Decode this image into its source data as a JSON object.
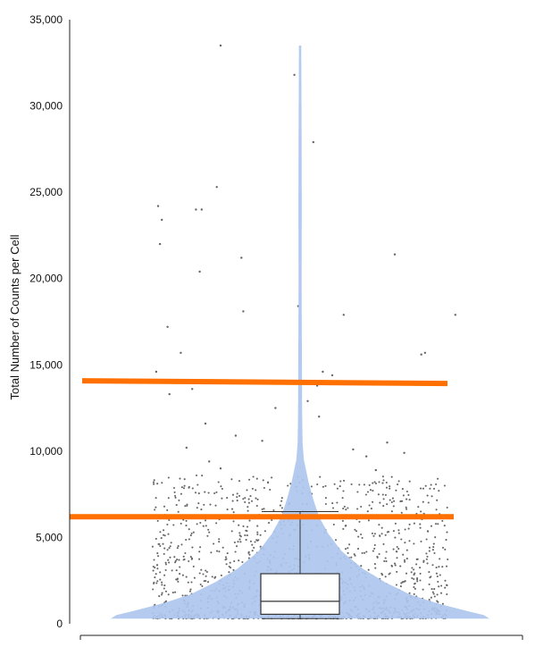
{
  "chart_data": {
    "type": "violin",
    "title": "",
    "xlabel": "",
    "ylabel": "Total Number of Counts per Cell",
    "ylim": [
      0,
      35000
    ],
    "yticks": [
      0,
      5000,
      10000,
      15000,
      20000,
      25000,
      30000,
      35000
    ],
    "ytick_labels": [
      "0",
      "5,000",
      "10,000",
      "15,000",
      "20,000",
      "25,000",
      "30,000",
      "35,000"
    ],
    "grid": false,
    "legend": "none",
    "box": {
      "min": 300,
      "q1": 550,
      "median": 1300,
      "q3": 2900,
      "whisker_high": 6500
    },
    "violin_profile": {
      "y": [
        300,
        500,
        800,
        1200,
        1700,
        2400,
        3200,
        4200,
        5200,
        6200,
        7200,
        8200,
        9500,
        10500,
        12000,
        14000,
        17000,
        20000,
        24000,
        28000,
        31000,
        33500
      ],
      "relative_halfwidth": [
        1.0,
        0.97,
        0.86,
        0.72,
        0.58,
        0.45,
        0.33,
        0.22,
        0.15,
        0.1,
        0.07,
        0.045,
        0.02,
        0.013,
        0.011,
        0.01,
        0.009,
        0.008,
        0.009,
        0.008,
        0.007,
        0.006
      ]
    },
    "threshold_lines": [
      {
        "y": 14000,
        "color": "#FF7000"
      },
      {
        "y": 6200,
        "color": "#FF7000"
      }
    ],
    "outlier_points": [
      [
        -0.42,
        33500
      ],
      [
        -0.03,
        31800
      ],
      [
        0.07,
        27900
      ],
      [
        -0.44,
        25300
      ],
      [
        -0.75,
        24200
      ],
      [
        -0.73,
        23400
      ],
      [
        -0.55,
        24000
      ],
      [
        -0.52,
        24000
      ],
      [
        -0.74,
        22000
      ],
      [
        -0.53,
        20400
      ],
      [
        -0.31,
        21200
      ],
      [
        0.5,
        21400
      ],
      [
        -0.3,
        18100
      ],
      [
        -0.01,
        18400
      ],
      [
        0.23,
        17900
      ],
      [
        0.82,
        17900
      ],
      [
        -0.7,
        17200
      ],
      [
        -0.63,
        15700
      ],
      [
        0.66,
        15700
      ],
      [
        0.64,
        15600
      ],
      [
        -0.76,
        14600
      ],
      [
        0.12,
        14600
      ],
      [
        0.17,
        14400
      ],
      [
        -0.69,
        13300
      ],
      [
        -0.57,
        13600
      ],
      [
        0.09,
        13800
      ],
      [
        0.04,
        12900
      ],
      [
        -0.13,
        12500
      ],
      [
        0.1,
        12000
      ],
      [
        -0.5,
        11600
      ],
      [
        -0.34,
        10900
      ],
      [
        0.46,
        10500
      ],
      [
        -0.6,
        10200
      ],
      [
        -0.2,
        10600
      ],
      [
        0.28,
        10100
      ],
      [
        0.55,
        9900
      ],
      [
        0.35,
        9700
      ],
      [
        -0.48,
        9400
      ],
      [
        -0.42,
        9000
      ],
      [
        0.4,
        8900
      ]
    ],
    "color_violin": "#AEC7EE",
    "color_points": "#666666",
    "color_threshold": "#FF7000"
  }
}
